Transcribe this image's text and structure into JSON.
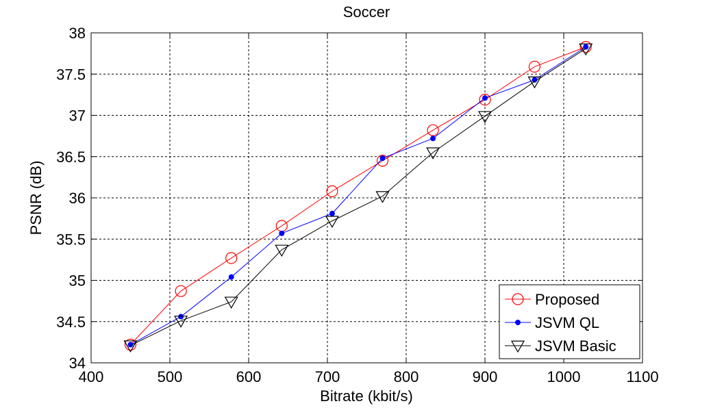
{
  "chart_data": {
    "type": "line",
    "title": "Soccer",
    "xlabel": "Bitrate (kbit/s)",
    "ylabel": "PSNR (dB)",
    "xlim": [
      400,
      1100
    ],
    "ylim": [
      34,
      38
    ],
    "xticks": [
      400,
      500,
      600,
      700,
      800,
      900,
      1000,
      1100
    ],
    "yticks": [
      34,
      34.5,
      35,
      35.5,
      36,
      36.5,
      37,
      37.5,
      38
    ],
    "grid": true,
    "legend_position": "bottom-right",
    "series": [
      {
        "name": "Proposed",
        "color": "#ff0000",
        "marker": "circle",
        "x": [
          450,
          514,
          578,
          642,
          706,
          770,
          834,
          900,
          963,
          1028
        ],
        "y": [
          34.22,
          34.87,
          35.27,
          35.66,
          36.08,
          36.45,
          36.82,
          37.19,
          37.59,
          37.83
        ]
      },
      {
        "name": "JSVM QL",
        "color": "#0000ff",
        "marker": "dot",
        "x": [
          450,
          514,
          578,
          642,
          706,
          770,
          834,
          900,
          963,
          1028
        ],
        "y": [
          34.22,
          34.56,
          35.04,
          35.57,
          35.81,
          36.48,
          36.72,
          37.21,
          37.43,
          37.83
        ]
      },
      {
        "name": "JSVM Basic",
        "color": "#000000",
        "marker": "triangle-down",
        "x": [
          450,
          514,
          578,
          642,
          706,
          770,
          834,
          900,
          963,
          1028
        ],
        "y": [
          34.21,
          34.51,
          34.74,
          35.37,
          35.72,
          36.02,
          36.55,
          36.99,
          37.41,
          37.81
        ]
      }
    ]
  }
}
